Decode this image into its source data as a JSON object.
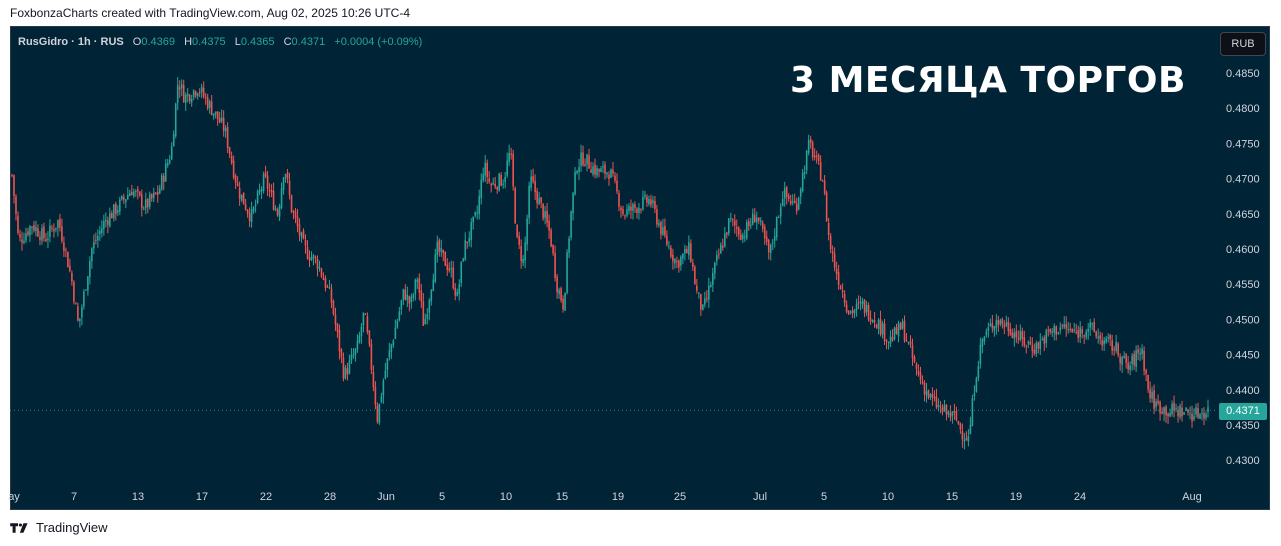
{
  "header": {
    "caption": "FoxbonzaCharts created with TradingView.com, Aug 02, 2025 10:26 UTC-4"
  },
  "legend": {
    "symbol": "RusGidro · 1h · RUS",
    "o_label": "O",
    "o_value": "0.4369",
    "h_label": "H",
    "h_value": "0.4375",
    "l_label": "L",
    "l_value": "0.4365",
    "c_label": "C",
    "c_value": "0.4371",
    "change": "+0.0004 (+0.09%)"
  },
  "currency_button": "RUB",
  "headline": "3 МЕСЯЦА ТОРГОВ",
  "last_price_label": "0.4371",
  "footer": {
    "brand": "TradingView"
  },
  "colors": {
    "background": "#012336",
    "up": "#26a69a",
    "down": "#ef5350",
    "axis_text": "#d1d4dc"
  },
  "chart_data": {
    "type": "candlestick",
    "title": "3 МЕСЯЦА ТОРГОВ",
    "symbol": "RusGidro",
    "interval": "1h",
    "ylim": [
      0.4275,
      0.4875
    ],
    "y_ticks": [
      "0.4850",
      "0.4800",
      "0.4750",
      "0.4700",
      "0.4650",
      "0.4600",
      "0.4550",
      "0.4500",
      "0.4450",
      "0.4400",
      "0.4350",
      "0.4300"
    ],
    "x_ticks": [
      "ay",
      "7",
      "13",
      "17",
      "22",
      "28",
      "Jun",
      "5",
      "10",
      "15",
      "19",
      "25",
      "Jul",
      "5",
      "10",
      "15",
      "19",
      "24",
      "Aug"
    ],
    "last_price": 0.4371,
    "grid": false,
    "price_path": [
      [
        0,
        0.4705
      ],
      [
        0.5,
        0.461
      ],
      [
        1.5,
        0.4635
      ],
      [
        2.5,
        0.4615
      ],
      [
        3.5,
        0.464
      ],
      [
        4,
        0.46
      ],
      [
        4.5,
        0.4555
      ],
      [
        5,
        0.449
      ],
      [
        6,
        0.46
      ],
      [
        7,
        0.464
      ],
      [
        8,
        0.466
      ],
      [
        9,
        0.4685
      ],
      [
        10,
        0.466
      ],
      [
        11,
        0.468
      ],
      [
        12,
        0.474
      ],
      [
        12.5,
        0.484
      ],
      [
        13,
        0.4815
      ],
      [
        14,
        0.483
      ],
      [
        15,
        0.48
      ],
      [
        16,
        0.477
      ],
      [
        17,
        0.4685
      ],
      [
        18,
        0.4645
      ],
      [
        19,
        0.47
      ],
      [
        20,
        0.465
      ],
      [
        20.5,
        0.472
      ],
      [
        21,
        0.466
      ],
      [
        22,
        0.46
      ],
      [
        23,
        0.458
      ],
      [
        24,
        0.453
      ],
      [
        25,
        0.442
      ],
      [
        26,
        0.446
      ],
      [
        26.5,
        0.451
      ],
      [
        27,
        0.444
      ],
      [
        27.5,
        0.436
      ],
      [
        28,
        0.442
      ],
      [
        28.5,
        0.446
      ],
      [
        29.5,
        0.454
      ],
      [
        30,
        0.452
      ],
      [
        30.5,
        0.456
      ],
      [
        31,
        0.449
      ],
      [
        32,
        0.46
      ],
      [
        33,
        0.457
      ],
      [
        33.5,
        0.453
      ],
      [
        34,
        0.46
      ],
      [
        35,
        0.465
      ],
      [
        35.5,
        0.472
      ],
      [
        36,
        0.469
      ],
      [
        37,
        0.47
      ],
      [
        37.5,
        0.474
      ],
      [
        38,
        0.461
      ],
      [
        38.5,
        0.458
      ],
      [
        39,
        0.47
      ],
      [
        40,
        0.465
      ],
      [
        40.5,
        0.462
      ],
      [
        41,
        0.455
      ],
      [
        41.5,
        0.452
      ],
      [
        42,
        0.464
      ],
      [
        42.5,
        0.472
      ],
      [
        43,
        0.473
      ],
      [
        44,
        0.471
      ],
      [
        45,
        0.471
      ],
      [
        46,
        0.465
      ],
      [
        47,
        0.466
      ],
      [
        48,
        0.467
      ],
      [
        49,
        0.462
      ],
      [
        50,
        0.458
      ],
      [
        51,
        0.46
      ],
      [
        51.5,
        0.454
      ],
      [
        52,
        0.451
      ],
      [
        53,
        0.458
      ],
      [
        54,
        0.464
      ],
      [
        55,
        0.462
      ],
      [
        56,
        0.465
      ],
      [
        57,
        0.459
      ],
      [
        58,
        0.468
      ],
      [
        59,
        0.466
      ],
      [
        60,
        0.475
      ],
      [
        61,
        0.47
      ],
      [
        61.5,
        0.461
      ],
      [
        62,
        0.457
      ],
      [
        63,
        0.451
      ],
      [
        64,
        0.452
      ],
      [
        65,
        0.45
      ],
      [
        66,
        0.447
      ],
      [
        67,
        0.449
      ],
      [
        68,
        0.443
      ],
      [
        69,
        0.439
      ],
      [
        70,
        0.437
      ],
      [
        71,
        0.436
      ],
      [
        71.5,
        0.434
      ],
      [
        72,
        0.433
      ],
      [
        72.5,
        0.442
      ],
      [
        73,
        0.447
      ],
      [
        74,
        0.45
      ],
      [
        75,
        0.449
      ],
      [
        76,
        0.447
      ],
      [
        77,
        0.446
      ],
      [
        78,
        0.448
      ],
      [
        79,
        0.449
      ],
      [
        80,
        0.448
      ],
      [
        81,
        0.449
      ],
      [
        82,
        0.447
      ],
      [
        83,
        0.446
      ],
      [
        84,
        0.443
      ],
      [
        85,
        0.446
      ],
      [
        85.5,
        0.44
      ],
      [
        86,
        0.438
      ],
      [
        87,
        0.437
      ],
      [
        88,
        0.437
      ],
      [
        89,
        0.4365
      ],
      [
        90,
        0.4371
      ]
    ]
  }
}
